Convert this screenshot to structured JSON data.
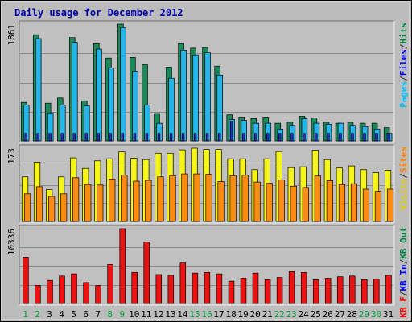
{
  "chart_data": {
    "type": "bar",
    "title": "Daily usage for December 2012",
    "days": [
      "1",
      "2",
      "3",
      "4",
      "5",
      "6",
      "7",
      "8",
      "9",
      "10",
      "11",
      "12",
      "13",
      "14",
      "15",
      "16",
      "17",
      "18",
      "19",
      "20",
      "21",
      "22",
      "23",
      "24",
      "25",
      "26",
      "27",
      "28",
      "29",
      "30",
      "31"
    ],
    "weekend_days": [
      "1",
      "2",
      "8",
      "9",
      "15",
      "16",
      "22",
      "23",
      "29",
      "30"
    ],
    "panels": [
      {
        "id": "top",
        "ymax_label": "1861",
        "ymax": 1861,
        "scale": "log",
        "right_label": [
          {
            "text": "Pages",
            "color": "#00c0ff"
          },
          {
            "text": "/",
            "color": "#333333"
          },
          {
            "text": "Files",
            "color": "#0000ff"
          },
          {
            "text": "/",
            "color": "#333333"
          },
          {
            "text": "Hits",
            "color": "#008040"
          }
        ],
        "series": [
          {
            "name": "Hits",
            "color": "#1b8a5a",
            "values": [
              56,
              1157,
              54,
              68,
              1019,
              60,
              776,
              406,
              1861,
              419,
              301,
              34,
              271,
              781,
              633,
              651,
              284,
              32,
              29,
              27,
              29,
              22,
              23,
              30,
              28,
              23,
              22,
              23,
              22,
              22,
              18
            ]
          },
          {
            "name": "Files",
            "color": "#24b5ea",
            "values": [
              50,
              974,
              35,
              50,
              820,
              48,
              606,
              262,
              1600,
              226,
              50,
              22,
              165,
              582,
              470,
              515,
              190,
              26,
              25,
              22,
              22,
              17,
              20,
              27,
              22,
              21,
              22,
              20,
              19,
              17,
              14
            ]
          },
          {
            "name": "Pages",
            "color": "#2430d0",
            "values": [
              14,
              14,
              14,
              14,
              14,
              14,
              14,
              14,
              14,
              14,
              14,
              14,
              14,
              14,
              14,
              14,
              14,
              24,
              14,
              14,
              14,
              14,
              14,
              14,
              14,
              14,
              14,
              14,
              14,
              14,
              14
            ]
          }
        ]
      },
      {
        "id": "mid",
        "ymax_label": "173",
        "ymax": 173,
        "right_label": [
          {
            "text": "Visits",
            "color": "#e0d000"
          },
          {
            "text": "/",
            "color": "#333333"
          },
          {
            "text": "Sites",
            "color": "#ff8000"
          }
        ],
        "series": [
          {
            "name": "Visits",
            "color": "#f5f51a",
            "values": [
              105,
              140,
              75,
              105,
              150,
              125,
              143,
              148,
              164,
              149,
              146,
              161,
              161,
              169,
              173,
              170,
              170,
              148,
              148,
              122,
              148,
              165,
              127,
              129,
              168,
              146,
              126,
              131,
              122,
              115,
              121
            ]
          },
          {
            "name": "Sites",
            "color": "#ff8c10",
            "values": [
              65,
              82,
              59,
              65,
              103,
              87,
              86,
              100,
              109,
              95,
              97,
              105,
              108,
              112,
              112,
              111,
              94,
              108,
              109,
              93,
              90,
              98,
              83,
              80,
              107,
              96,
              87,
              89,
              76,
              71,
              76
            ]
          }
        ]
      },
      {
        "id": "bot",
        "ymax_label": "10336",
        "ymax": 10336,
        "right_label": [
          {
            "text": "KB F",
            "color": "#ff0000"
          },
          {
            "text": "/",
            "color": "#333333"
          },
          {
            "text": "KB In",
            "color": "#0000ff"
          },
          {
            "text": "/",
            "color": "#333333"
          },
          {
            "text": "KB Out",
            "color": "#008040"
          }
        ],
        "series": [
          {
            "name": "KB F",
            "color": "#ee1111",
            "values": [
              6400,
              2500,
              3200,
              3800,
              4100,
              2900,
              2500,
              5400,
              10336,
              4300,
              8500,
              4000,
              3900,
              5600,
              4200,
              4300,
              4100,
              3100,
              3500,
              4200,
              3300,
              3600,
              4400,
              4300,
              3300,
              3500,
              3700,
              3800,
              3300,
              3400,
              3900
            ]
          }
        ]
      }
    ]
  }
}
